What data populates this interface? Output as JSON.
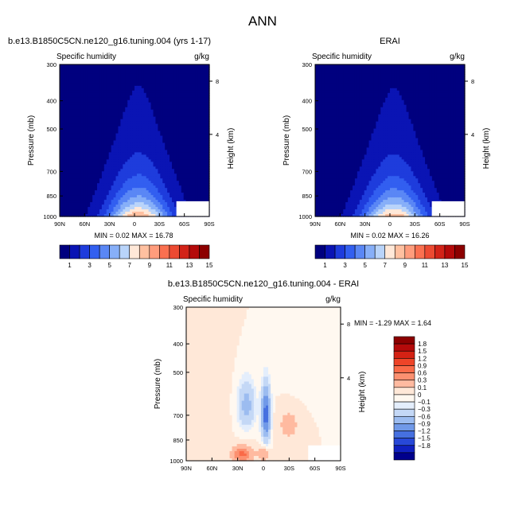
{
  "figure": {
    "title": "ANN"
  },
  "colors": {
    "positive_scale": [
      "#00007f",
      "#0a14b4",
      "#1e3cdc",
      "#325ff0",
      "#5a87f5",
      "#87aff8",
      "#b9d4fa",
      "#ffe8d8",
      "#ffc0a0",
      "#ff9c7c",
      "#fa7050",
      "#ec4a32",
      "#d22318",
      "#b40a0a",
      "#8c0000"
    ],
    "diff_scale": [
      "#8c0000",
      "#b40a0a",
      "#d42214",
      "#ee4428",
      "#fa6a48",
      "#fc9070",
      "#ffbaa0",
      "#ffe8d8",
      "#fff8f0",
      "#e4eefc",
      "#c4d8f6",
      "#9cbcf0",
      "#7099e8",
      "#4670e0",
      "#2848d8",
      "#1020c0",
      "#00008c"
    ]
  },
  "chart_data": [
    {
      "id": "model",
      "type": "heatmap",
      "title": "b.e13.B1850C5CN.ne120_g16.tuning.004 (yrs 1-17)",
      "subtitle_left": "Specific humidity",
      "subtitle_right": "g/kg",
      "xlabel": "",
      "ylabel": "Pressure (mb)",
      "y2label": "Height (km)",
      "x_ticks": [
        "90N",
        "60N",
        "30N",
        "0",
        "30S",
        "60S",
        "90S"
      ],
      "y_ticks": [
        "300",
        "400",
        "500",
        "700",
        "850",
        "1000"
      ],
      "y2_ticks": [
        "8",
        "4"
      ],
      "min": 0.02,
      "max": 16.78,
      "stats_text": "MIN =     0.02    MAX =    16.78",
      "levels": [
        1,
        3,
        5,
        7,
        9,
        11,
        13,
        15
      ],
      "colorbar_labels": [
        "1",
        "3",
        "5",
        "7",
        "9",
        "11",
        "13",
        "15"
      ],
      "field": "specific-humidity",
      "center_lat": -5,
      "peak": 16.78
    },
    {
      "id": "obs",
      "type": "heatmap",
      "title": "ERAI",
      "subtitle_left": "Specific humidity",
      "subtitle_right": "g/kg",
      "xlabel": "",
      "ylabel": "Pressure (mb)",
      "y2label": "Height (km)",
      "x_ticks": [
        "90N",
        "60N",
        "30N",
        "0",
        "30S",
        "60S",
        "90S"
      ],
      "y_ticks": [
        "300",
        "400",
        "500",
        "700",
        "850",
        "1000"
      ],
      "y2_ticks": [
        "8",
        "4"
      ],
      "min": 0.02,
      "max": 16.26,
      "stats_text": "MIN =     0.02    MAX =    16.26",
      "levels": [
        1,
        3,
        5,
        7,
        9,
        11,
        13,
        15
      ],
      "colorbar_labels": [
        "1",
        "3",
        "5",
        "7",
        "9",
        "11",
        "13",
        "15"
      ],
      "field": "specific-humidity",
      "center_lat": -5,
      "peak": 16.26
    },
    {
      "id": "diff",
      "type": "heatmap",
      "title": "b.e13.B1850C5CN.ne120_g16.tuning.004 - ERAI",
      "subtitle_left": "Specific humidity",
      "subtitle_right": "g/kg",
      "xlabel": "",
      "ylabel": "Pressure (mb)",
      "y2label": "Height (km)",
      "x_ticks": [
        "90N",
        "60N",
        "30N",
        "0",
        "30S",
        "60S",
        "90S"
      ],
      "y_ticks": [
        "300",
        "400",
        "500",
        "700",
        "850",
        "1000"
      ],
      "y2_ticks": [
        "8",
        "4"
      ],
      "min": -1.29,
      "max": 1.64,
      "stats_text": "MIN =    -1.29    MAX =     1.64",
      "levels": [
        -1.8,
        -1.5,
        -1.2,
        -0.9,
        -0.6,
        -0.3,
        -0.1,
        0,
        0.1,
        0.3,
        0.6,
        0.9,
        1.2,
        1.5,
        1.8
      ],
      "colorbar_labels": [
        "1.8",
        "1.5",
        "1.2",
        "0.9",
        "0.6",
        "0.3",
        "0.1",
        "0",
        "−0.1",
        "−0.3",
        "−0.6",
        "−0.9",
        "−1.2",
        "−1.5",
        "−1.8"
      ],
      "field": "difference"
    }
  ]
}
